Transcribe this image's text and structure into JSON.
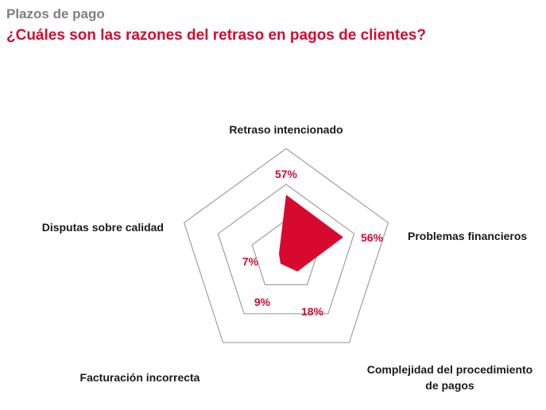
{
  "header": {
    "kicker": "Plazos de pago",
    "title": "¿Cuáles son las razones del retraso en pagos de clientes?"
  },
  "colors": {
    "accent": "#d8092f",
    "kicker_gray": "#7f7f7f",
    "grid": "#a0a0a0",
    "label": "#1a1a1a"
  },
  "chart_data": {
    "type": "radar",
    "title": "¿Cuáles son las razones del retraso en pagos de clientes?",
    "categories": [
      "Retraso intencionado",
      "Problemas financieros",
      "Complejidad del procedimiento de pagos",
      "Facturación incorrecta",
      "Disputas sobre calidad"
    ],
    "values": [
      57,
      56,
      18,
      9,
      7
    ],
    "value_labels": [
      "57%",
      "56%",
      "18%",
      "9%",
      "7%"
    ],
    "max": 100,
    "rings": 3,
    "grid": true,
    "legend": "none",
    "fill_color": "#d8092f"
  }
}
